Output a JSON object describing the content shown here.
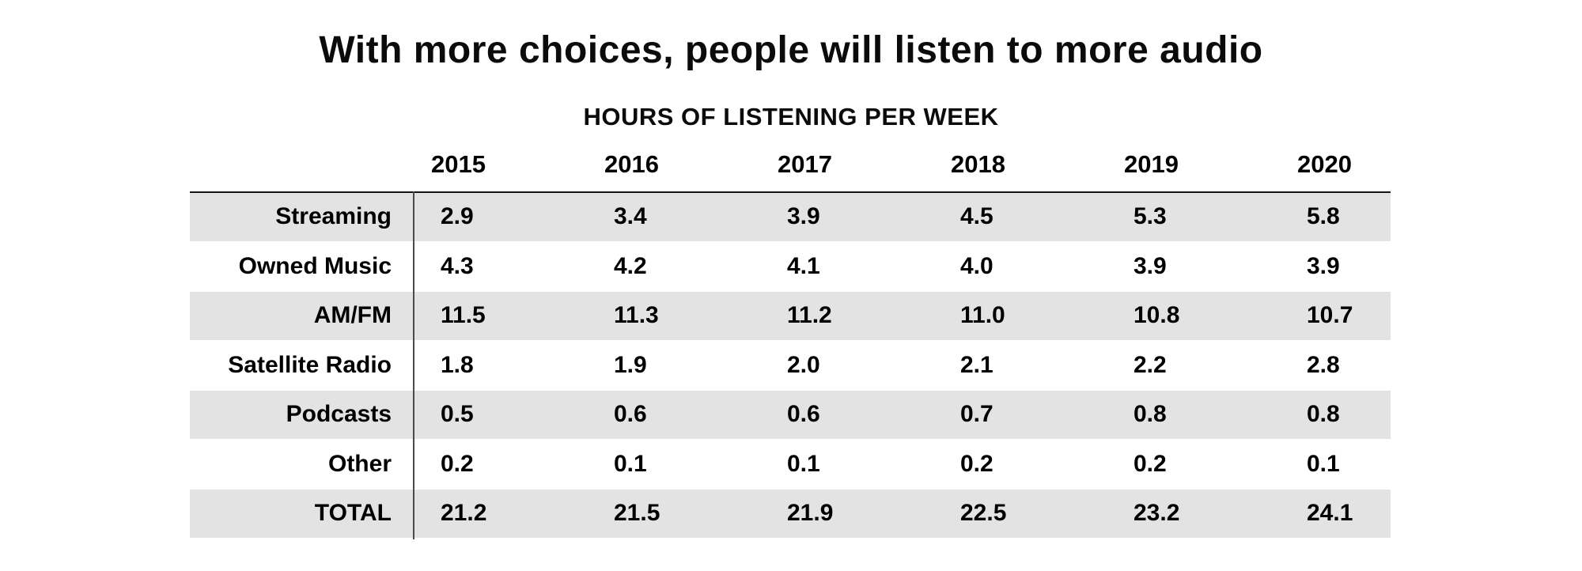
{
  "title": "With more choices, people will listen to more audio",
  "subtitle": "HOURS OF LISTENING PER WEEK",
  "chart_data": {
    "type": "table",
    "title": "With more choices, people will listen to more audio",
    "subtitle": "HOURS OF LISTENING PER WEEK",
    "unit": "hours of listening per week",
    "categories": [
      "2015",
      "2016",
      "2017",
      "2018",
      "2019",
      "2020"
    ],
    "rows": [
      {
        "label": "Streaming",
        "values": [
          "2.9",
          "3.4",
          "3.9",
          "4.5",
          "5.3",
          "5.8"
        ]
      },
      {
        "label": "Owned Music",
        "values": [
          "4.3",
          "4.2",
          "4.1",
          "4.0",
          "3.9",
          "3.9"
        ]
      },
      {
        "label": "AM/FM",
        "values": [
          "11.5",
          "11.3",
          "11.2",
          "11.0",
          "10.8",
          "10.7"
        ]
      },
      {
        "label": "Satellite Radio",
        "values": [
          "1.8",
          "1.9",
          "2.0",
          "2.1",
          "2.2",
          "2.8"
        ]
      },
      {
        "label": "Podcasts",
        "values": [
          "0.5",
          "0.6",
          "0.6",
          "0.7",
          "0.8",
          "0.8"
        ]
      },
      {
        "label": "Other",
        "values": [
          "0.2",
          "0.1",
          "0.1",
          "0.2",
          "0.2",
          "0.1"
        ]
      },
      {
        "label": "TOTAL",
        "values": [
          "21.2",
          "21.5",
          "21.9",
          "22.5",
          "23.2",
          "24.1"
        ]
      }
    ],
    "layout": {
      "stripe_rows": "odd rows striped starting with first data row",
      "grid": "no cell borders; single top rule and one vertical divider after label column"
    },
    "colors": {
      "background": "#ffffff",
      "text": "#000000",
      "stripe": "#e3e3e3",
      "top_rule": "#151515",
      "divider": "#4a4a4a"
    }
  }
}
